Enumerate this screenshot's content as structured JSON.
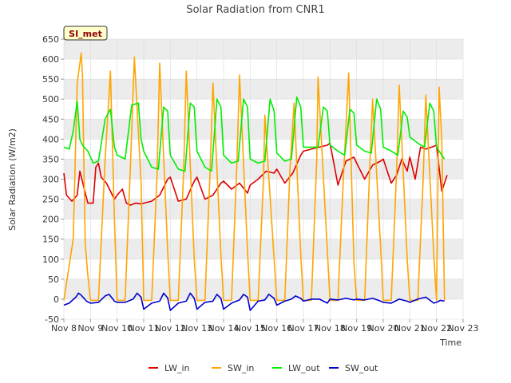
{
  "chart_data": {
    "type": "line",
    "title": "Solar Radiation from CNR1",
    "xlabel": "Time",
    "ylabel": "Solar Radiation (W/m2)",
    "station_label": "SI_met",
    "xlim": [
      8,
      23
    ],
    "ylim": [
      -50,
      650
    ],
    "x_ticks": [
      8,
      9,
      10,
      11,
      12,
      13,
      14,
      15,
      16,
      17,
      18,
      19,
      20,
      21,
      22,
      23
    ],
    "x_tick_labels": [
      "Nov 8",
      "Nov 9",
      "Nov 10",
      "Nov 11",
      "Nov 12",
      "Nov 13",
      "Nov 14",
      "Nov 15",
      "Nov 16",
      "Nov 17",
      "Nov 18",
      "Nov 19",
      "Nov 20",
      "Nov 21",
      "Nov 22",
      "Nov 23"
    ],
    "y_ticks": [
      -50,
      0,
      50,
      100,
      150,
      200,
      250,
      300,
      350,
      400,
      450,
      500,
      550,
      600,
      650
    ],
    "grid": true,
    "legend_position": "bottom",
    "colors": {
      "LW_in": "#dd0000",
      "SW_in": "#ffa500",
      "LW_out": "#00ee00",
      "SW_out": "#0000cc",
      "band": "#ececec",
      "badge_bg": "#ffffcc"
    },
    "series": [
      {
        "name": "LW_in",
        "x": [
          8.0,
          8.1,
          8.3,
          8.5,
          8.6,
          8.9,
          9.1,
          9.2,
          9.3,
          9.4,
          9.6,
          9.9,
          10.0,
          10.2,
          10.35,
          10.5,
          10.7,
          10.9,
          11.0,
          11.3,
          11.6,
          11.9,
          12.0,
          12.3,
          12.6,
          12.9,
          13.0,
          13.3,
          13.6,
          13.9,
          14.0,
          14.3,
          14.6,
          14.9,
          15.0,
          15.3,
          15.6,
          15.9,
          16.0,
          16.3,
          16.6,
          16.9,
          17.0,
          17.3,
          17.6,
          17.9,
          18.0,
          18.3,
          18.6,
          18.9,
          19.0,
          19.3,
          19.6,
          19.9,
          20.0,
          20.3,
          20.5,
          20.7,
          20.9,
          21.0,
          21.2,
          21.4,
          21.6,
          21.9,
          22.0,
          22.2,
          22.4
        ],
        "values": [
          315,
          260,
          245,
          260,
          320,
          240,
          240,
          330,
          340,
          305,
          290,
          250,
          260,
          275,
          240,
          235,
          240,
          238,
          240,
          245,
          260,
          300,
          305,
          245,
          250,
          295,
          305,
          250,
          260,
          290,
          295,
          275,
          290,
          265,
          285,
          300,
          320,
          315,
          325,
          290,
          315,
          360,
          370,
          375,
          380,
          385,
          390,
          285,
          345,
          355,
          340,
          300,
          335,
          345,
          350,
          290,
          310,
          350,
          320,
          355,
          300,
          380,
          375,
          382,
          385,
          270,
          310
        ]
      },
      {
        "name": "SW_in",
        "x": [
          8.0,
          8.35,
          8.5,
          8.65,
          8.7,
          8.8,
          8.9,
          9.0,
          9.3,
          9.55,
          9.75,
          9.9,
          10.0,
          10.3,
          10.5,
          10.65,
          10.9,
          11.0,
          11.3,
          11.5,
          11.6,
          11.9,
          12.0,
          12.3,
          12.5,
          12.6,
          12.9,
          13.0,
          13.3,
          13.5,
          13.6,
          13.9,
          14.0,
          14.3,
          14.5,
          14.6,
          14.9,
          15.0,
          15.3,
          15.5,
          15.55,
          15.9,
          16.0,
          16.3,
          16.5,
          16.65,
          16.9,
          17.0,
          17.3,
          17.5,
          17.55,
          17.9,
          18.0,
          18.3,
          18.5,
          18.7,
          18.9,
          19.0,
          19.3,
          19.5,
          19.6,
          19.9,
          20.0,
          20.3,
          20.5,
          20.6,
          20.9,
          21.0,
          21.3,
          21.5,
          21.6,
          21.9,
          22.0,
          22.1,
          22.2,
          22.3
        ],
        "values": [
          -3,
          150,
          540,
          615,
          560,
          140,
          60,
          -3,
          -3,
          350,
          570,
          200,
          -3,
          -3,
          330,
          605,
          290,
          -3,
          -3,
          310,
          590,
          120,
          -3,
          -3,
          320,
          570,
          100,
          -3,
          -3,
          330,
          540,
          110,
          -3,
          -3,
          340,
          560,
          120,
          -3,
          -3,
          300,
          460,
          100,
          -3,
          -3,
          330,
          490,
          110,
          -3,
          -3,
          350,
          555,
          120,
          -3,
          -3,
          300,
          565,
          90,
          -3,
          -3,
          340,
          500,
          130,
          -3,
          -3,
          320,
          535,
          100,
          -3,
          -3,
          300,
          510,
          110,
          -3,
          530,
          400,
          -3
        ]
      },
      {
        "name": "LW_out",
        "x": [
          8.0,
          8.2,
          8.35,
          8.5,
          8.6,
          8.7,
          8.9,
          9.1,
          9.3,
          9.55,
          9.75,
          9.9,
          10.0,
          10.3,
          10.55,
          10.8,
          10.9,
          11.0,
          11.3,
          11.55,
          11.75,
          11.9,
          12.0,
          12.3,
          12.55,
          12.75,
          12.9,
          13.0,
          13.3,
          13.55,
          13.75,
          13.9,
          14.0,
          14.3,
          14.55,
          14.75,
          14.9,
          15.0,
          15.3,
          15.55,
          15.75,
          15.9,
          16.0,
          16.3,
          16.55,
          16.75,
          16.9,
          17.0,
          17.3,
          17.55,
          17.75,
          17.9,
          18.0,
          18.3,
          18.55,
          18.75,
          18.9,
          19.0,
          19.3,
          19.55,
          19.75,
          19.9,
          20.0,
          20.3,
          20.55,
          20.75,
          20.9,
          21.0,
          21.3,
          21.55,
          21.75,
          21.9,
          22.0,
          22.3
        ],
        "values": [
          380,
          375,
          420,
          495,
          400,
          385,
          370,
          340,
          345,
          450,
          475,
          380,
          360,
          350,
          485,
          490,
          400,
          370,
          330,
          325,
          480,
          470,
          360,
          325,
          320,
          490,
          480,
          370,
          330,
          320,
          500,
          480,
          360,
          340,
          345,
          500,
          480,
          350,
          340,
          345,
          500,
          470,
          365,
          345,
          350,
          505,
          480,
          380,
          380,
          380,
          480,
          470,
          385,
          370,
          360,
          475,
          465,
          385,
          370,
          365,
          500,
          475,
          380,
          370,
          360,
          470,
          455,
          405,
          390,
          380,
          490,
          470,
          380,
          350
        ]
      },
      {
        "name": "SW_out",
        "x": [
          8.0,
          8.2,
          8.45,
          8.55,
          8.65,
          8.85,
          9.0,
          9.3,
          9.55,
          9.7,
          9.9,
          10.0,
          10.3,
          10.6,
          10.75,
          10.9,
          11.0,
          11.3,
          11.6,
          11.75,
          11.9,
          12.0,
          12.3,
          12.6,
          12.75,
          12.9,
          13.0,
          13.3,
          13.6,
          13.75,
          13.9,
          14.0,
          14.3,
          14.6,
          14.75,
          14.9,
          15.0,
          15.3,
          15.55,
          15.7,
          15.9,
          16.0,
          16.3,
          16.55,
          16.7,
          16.9,
          17.0,
          17.3,
          17.6,
          17.9,
          18.0,
          18.3,
          18.6,
          18.9,
          19.0,
          19.3,
          19.6,
          19.9,
          20.0,
          20.3,
          20.6,
          20.9,
          21.0,
          21.3,
          21.6,
          21.9,
          22.0,
          22.15,
          22.3
        ],
        "values": [
          -15,
          -10,
          5,
          15,
          10,
          -5,
          -10,
          -8,
          8,
          12,
          -5,
          -8,
          -8,
          0,
          15,
          5,
          -25,
          -10,
          -5,
          15,
          3,
          -28,
          -10,
          -5,
          15,
          2,
          -25,
          -8,
          -5,
          12,
          2,
          -25,
          -10,
          -2,
          12,
          5,
          -28,
          -5,
          -2,
          12,
          2,
          -15,
          -5,
          0,
          8,
          2,
          -5,
          0,
          0,
          -10,
          0,
          -2,
          2,
          -2,
          0,
          -2,
          2,
          -5,
          -8,
          -10,
          0,
          -5,
          -8,
          0,
          5,
          -10,
          -8,
          -3,
          -5
        ]
      }
    ]
  }
}
